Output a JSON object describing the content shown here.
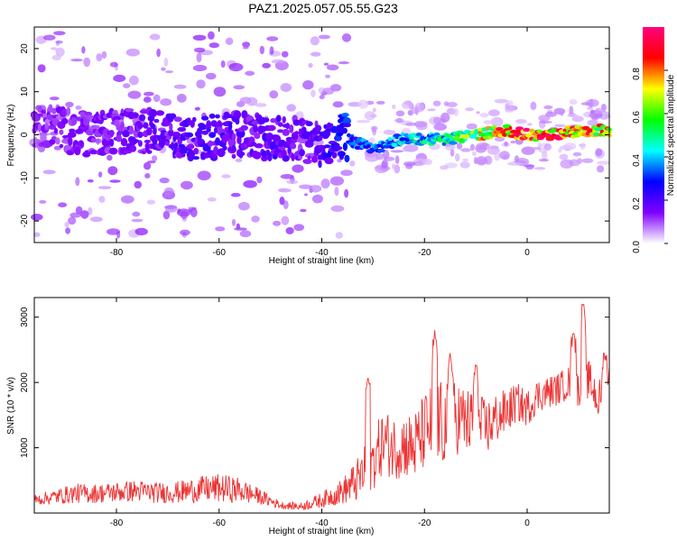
{
  "title": "PAZ1.2025.057.05.55.G23",
  "chart_data": [
    {
      "type": "heatmap",
      "xlabel": "Height of straight line (km)",
      "ylabel": "Frequency (Hz)",
      "xlim": [
        -96,
        16
      ],
      "ylim": [
        -25,
        25
      ],
      "xticks": [
        -80,
        -60,
        -40,
        -20,
        0
      ],
      "yticks": [
        -20,
        -10,
        0,
        10,
        20
      ],
      "colorbar": {
        "label": "Normalized spectral amplitude",
        "range": [
          0,
          1
        ],
        "ticks": [
          0.0,
          0.2,
          0.4,
          0.6,
          0.8
        ],
        "tick_labels": [
          "0.0",
          "0.2",
          "0.4",
          "0.6",
          "0.8"
        ],
        "colors": [
          "#ffffff",
          "#8000ff",
          "#0000ff",
          "#00ffff",
          "#00ff00",
          "#ffff00",
          "#ff0000",
          "#ff0080"
        ]
      },
      "ridge": {
        "x": [
          -95,
          -90,
          -85,
          -80,
          -75,
          -70,
          -65,
          -60,
          -55,
          -50,
          -45,
          -40,
          -36,
          -33,
          -30,
          -27,
          -25,
          -20,
          -15,
          -10,
          -5,
          0,
          5,
          10,
          15
        ],
        "frequency": [
          2,
          1,
          0,
          1,
          1,
          0,
          -1,
          0,
          0,
          -1,
          -1,
          -2,
          0,
          -2,
          -3,
          -2,
          -1,
          -1,
          -1,
          0,
          1,
          0,
          0,
          1,
          1
        ],
        "amplitude": [
          0.12,
          0.14,
          0.15,
          0.15,
          0.17,
          0.18,
          0.2,
          0.2,
          0.18,
          0.2,
          0.17,
          0.2,
          0.3,
          0.35,
          0.35,
          0.4,
          0.45,
          0.45,
          0.55,
          0.7,
          0.85,
          0.95,
          0.95,
          0.9,
          0.8
        ]
      }
    },
    {
      "type": "line",
      "xlabel": "Height of straight line (km)",
      "ylabel": "SNR (10 * v/v)",
      "xlim": [
        -96,
        16
      ],
      "ylim": [
        0,
        3300
      ],
      "xticks": [
        -80,
        -60,
        -40,
        -20,
        0
      ],
      "yticks": [
        1000,
        2000,
        3000
      ],
      "color": "#ee3333",
      "x": [
        -96,
        -92,
        -88,
        -84,
        -80,
        -76,
        -72,
        -68,
        -64,
        -60,
        -56,
        -52,
        -48,
        -44,
        -40,
        -36,
        -33,
        -30,
        -28,
        -26,
        -24,
        -22,
        -20,
        -18,
        -16,
        -14,
        -12,
        -10,
        -8,
        -6,
        -4,
        -2,
        0,
        2,
        4,
        6,
        8,
        10,
        12,
        14,
        16
      ],
      "y": [
        200,
        250,
        300,
        300,
        320,
        340,
        310,
        320,
        360,
        380,
        350,
        250,
        120,
        100,
        200,
        330,
        500,
        800,
        1100,
        1000,
        1050,
        1000,
        1250,
        1400,
        1350,
        1500,
        1400,
        1350,
        1300,
        1450,
        1550,
        1700,
        1600,
        1800,
        1850,
        1900,
        2000,
        1900,
        2050,
        1700,
        2000
      ],
      "peaks": [
        {
          "x": -18,
          "y": 2800
        },
        {
          "x": -15,
          "y": 2450
        },
        {
          "x": -10,
          "y": 2300
        },
        {
          "x": -31,
          "y": 2100
        },
        {
          "x": 9,
          "y": 2750
        },
        {
          "x": 11,
          "y": 3200
        },
        {
          "x": 15,
          "y": 2450
        }
      ],
      "noise": [
        80,
        120,
        150,
        150,
        160,
        170,
        160,
        170,
        200,
        220,
        200,
        120,
        60,
        60,
        120,
        200,
        350,
        450,
        500,
        500,
        500,
        550,
        600,
        650,
        650,
        600,
        550,
        500,
        450,
        400,
        350,
        300,
        280,
        260,
        250,
        250,
        260,
        280,
        300,
        350,
        300
      ]
    }
  ]
}
